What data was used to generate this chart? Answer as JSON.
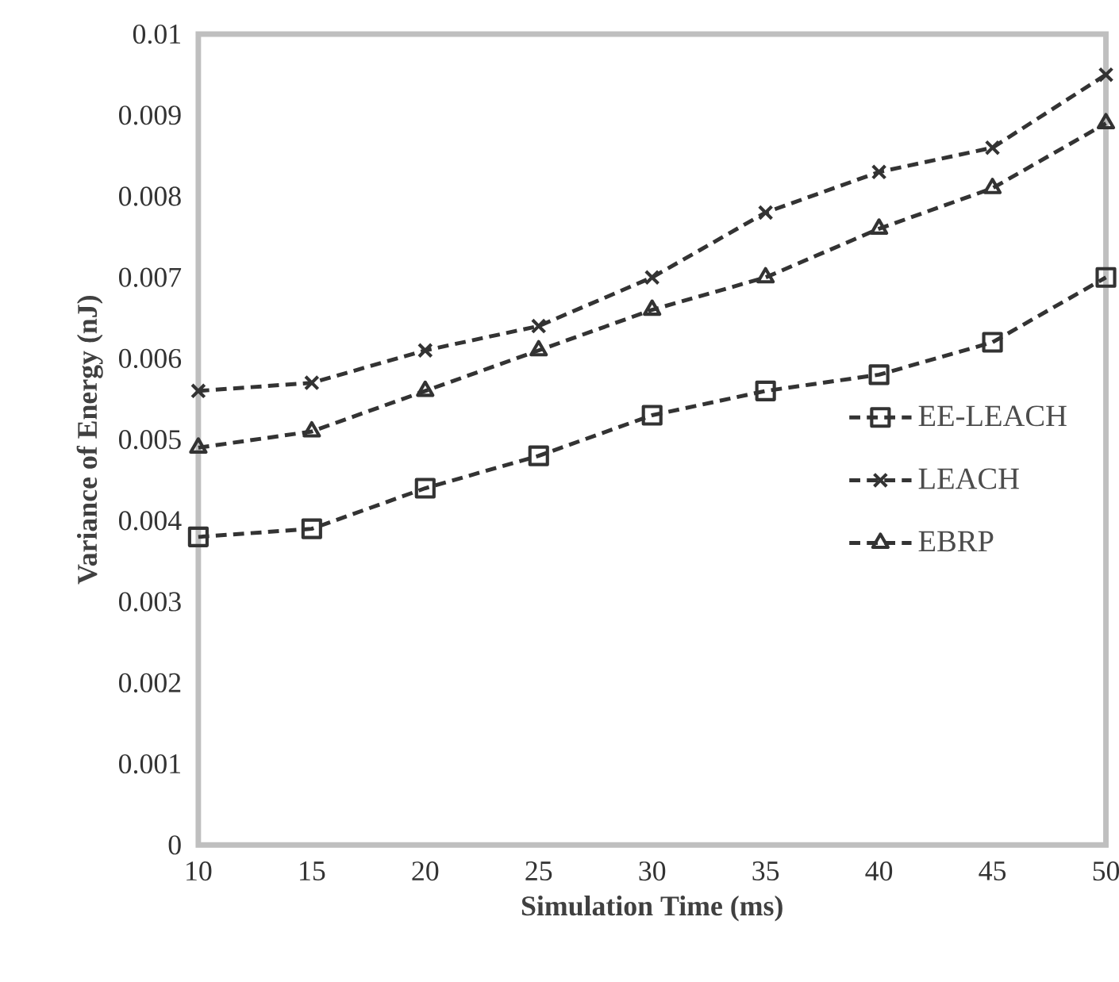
{
  "chart_data": {
    "type": "line",
    "xlabel": "Simulation Time (ms)",
    "ylabel": "Variance of Energy (nJ)",
    "x": [
      10,
      15,
      20,
      25,
      30,
      35,
      40,
      45,
      50
    ],
    "series": [
      {
        "name": "EE-LEACH",
        "color": "#333333",
        "marker": "square",
        "values": [
          0.0038,
          0.0039,
          0.0044,
          0.0048,
          0.0053,
          0.0056,
          0.0058,
          0.0062,
          0.007
        ]
      },
      {
        "name": "LEACH",
        "color": "#333333",
        "marker": "cross",
        "values": [
          0.0056,
          0.0057,
          0.0061,
          0.0064,
          0.007,
          0.0078,
          0.0083,
          0.0086,
          0.0095
        ]
      },
      {
        "name": "EBRP",
        "color": "#333333",
        "marker": "triangle",
        "values": [
          0.0049,
          0.0051,
          0.0056,
          0.0061,
          0.0066,
          0.007,
          0.0076,
          0.0081,
          0.0089
        ]
      }
    ],
    "line_style": "dashed",
    "legend": "right",
    "grid": false,
    "xlim": [
      10,
      50
    ],
    "ylim": [
      0,
      0.01
    ],
    "xticks": [
      {
        "value": 10,
        "label": "10"
      },
      {
        "value": 15,
        "label": "15"
      },
      {
        "value": 20,
        "label": "20"
      },
      {
        "value": 25,
        "label": "25"
      },
      {
        "value": 30,
        "label": "30"
      },
      {
        "value": 35,
        "label": "35"
      },
      {
        "value": 40,
        "label": "40"
      },
      {
        "value": 45,
        "label": "45"
      },
      {
        "value": 50,
        "label": "50"
      }
    ],
    "yticks": [
      {
        "value": 0,
        "label": "0"
      },
      {
        "value": 0.001,
        "label": "0.001"
      },
      {
        "value": 0.002,
        "label": "0.002"
      },
      {
        "value": 0.003,
        "label": "0.003"
      },
      {
        "value": 0.004,
        "label": "0.004"
      },
      {
        "value": 0.005,
        "label": "0.005"
      },
      {
        "value": 0.006,
        "label": "0.006"
      },
      {
        "value": 0.007,
        "label": "0.007"
      },
      {
        "value": 0.008,
        "label": "0.008"
      },
      {
        "value": 0.009,
        "label": "0.009"
      },
      {
        "value": 0.01,
        "label": "0.01"
      }
    ]
  }
}
